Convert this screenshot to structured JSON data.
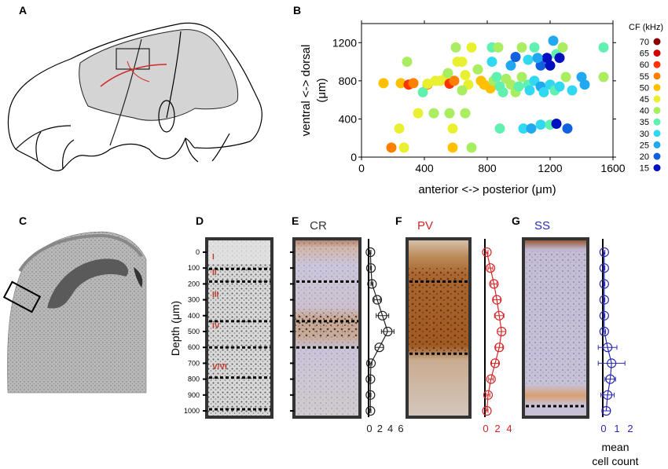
{
  "panels": {
    "A": "A",
    "B": "B",
    "C": "C",
    "D": "D",
    "E": "E",
    "F": "F",
    "G": "G"
  },
  "stain_titles": {
    "E": "CR",
    "F": "PV",
    "G": "SS"
  },
  "layer_labels": [
    "I",
    "II",
    "III",
    "IV",
    "V/VI"
  ],
  "colors": {
    "CR": "#222222",
    "PV": "#d62728",
    "SS": "#2a2ab5"
  },
  "chart_data": [
    {
      "type": "scatter",
      "panel": "B",
      "xlabel": "anterior <-> posterior (μm)",
      "ylabel_line1": "ventral <-> dorsal",
      "ylabel_line2": "(μm)",
      "xlim": [
        0,
        1600
      ],
      "ylim": [
        0,
        1400
      ],
      "xticks": [
        0,
        400,
        800,
        1200,
        1600
      ],
      "yticks": [
        0,
        400,
        800,
        1200
      ],
      "legend_title": "CF (kHz)",
      "legend": [
        {
          "label": "70",
          "color": "#8b0000"
        },
        {
          "label": "65",
          "color": "#d20000"
        },
        {
          "label": "60",
          "color": "#ff3300"
        },
        {
          "label": "55",
          "color": "#ff8000"
        },
        {
          "label": "50",
          "color": "#ffc000"
        },
        {
          "label": "45",
          "color": "#e8f030"
        },
        {
          "label": "40",
          "color": "#a8ee60"
        },
        {
          "label": "35",
          "color": "#60f0b0"
        },
        {
          "label": "30",
          "color": "#30d8f0"
        },
        {
          "label": "25",
          "color": "#20a8f0"
        },
        {
          "label": "20",
          "color": "#1060e0"
        },
        {
          "label": "15",
          "color": "#0010c0"
        }
      ],
      "points": [
        [
          140,
          775,
          50
        ],
        [
          250,
          775,
          50
        ],
        [
          300,
          760,
          60
        ],
        [
          330,
          775,
          55
        ],
        [
          420,
          760,
          55
        ],
        [
          470,
          800,
          45
        ],
        [
          500,
          800,
          45
        ],
        [
          540,
          840,
          45
        ],
        [
          560,
          770,
          60
        ],
        [
          590,
          800,
          55
        ],
        [
          610,
          1000,
          45
        ],
        [
          640,
          1000,
          45
        ],
        [
          660,
          860,
          45
        ],
        [
          680,
          760,
          45
        ],
        [
          700,
          1150,
          45
        ],
        [
          740,
          920,
          40
        ],
        [
          760,
          800,
          50
        ],
        [
          780,
          760,
          50
        ],
        [
          820,
          720,
          50
        ],
        [
          840,
          800,
          40
        ],
        [
          860,
          840,
          35
        ],
        [
          880,
          740,
          35
        ],
        [
          900,
          680,
          35
        ],
        [
          920,
          820,
          40
        ],
        [
          950,
          760,
          40
        ],
        [
          980,
          680,
          40
        ],
        [
          1000,
          740,
          35
        ],
        [
          1020,
          840,
          40
        ],
        [
          1060,
          760,
          35
        ],
        [
          1070,
          700,
          30
        ],
        [
          1100,
          800,
          30
        ],
        [
          1140,
          740,
          25
        ],
        [
          1160,
          680,
          30
        ],
        [
          1200,
          760,
          30
        ],
        [
          1230,
          700,
          35
        ],
        [
          1260,
          740,
          30
        ],
        [
          1300,
          840,
          40
        ],
        [
          1340,
          700,
          30
        ],
        [
          1400,
          840,
          25
        ],
        [
          1420,
          760,
          25
        ],
        [
          1540,
          840,
          40
        ],
        [
          1540,
          1150,
          35
        ],
        [
          830,
          1000,
          30
        ],
        [
          830,
          1150,
          35
        ],
        [
          870,
          1150,
          40
        ],
        [
          950,
          960,
          25
        ],
        [
          980,
          1050,
          20
        ],
        [
          1020,
          1150,
          40
        ],
        [
          1060,
          1020,
          30
        ],
        [
          1100,
          1150,
          35
        ],
        [
          1140,
          960,
          20
        ],
        [
          1180,
          1040,
          15
        ],
        [
          1200,
          960,
          15
        ],
        [
          1220,
          1220,
          25
        ],
        [
          1240,
          1080,
          35
        ],
        [
          1260,
          1040,
          15
        ],
        [
          1280,
          1150,
          40
        ],
        [
          1120,
          1040,
          25
        ],
        [
          600,
          1150,
          40
        ],
        [
          550,
          880,
          40
        ],
        [
          390,
          680,
          35
        ],
        [
          420,
          770,
          45
        ],
        [
          290,
          1000,
          40
        ],
        [
          640,
          700,
          40
        ],
        [
          360,
          460,
          45
        ],
        [
          460,
          460,
          40
        ],
        [
          560,
          460,
          40
        ],
        [
          660,
          460,
          40
        ],
        [
          240,
          300,
          45
        ],
        [
          580,
          300,
          45
        ],
        [
          880,
          300,
          35
        ],
        [
          1030,
          300,
          30
        ],
        [
          1080,
          300,
          25
        ],
        [
          1140,
          340,
          30
        ],
        [
          1200,
          340,
          35
        ],
        [
          1240,
          350,
          15
        ],
        [
          1310,
          300,
          20
        ],
        [
          190,
          100,
          55
        ],
        [
          270,
          100,
          45
        ],
        [
          580,
          100,
          50
        ],
        [
          700,
          100,
          40
        ]
      ]
    },
    {
      "type": "line",
      "panel": "E",
      "series_name": "CR",
      "xlim": [
        0,
        6
      ],
      "xticks": [
        0,
        2,
        4,
        6
      ],
      "xticklabels": [
        "0",
        "2",
        "4",
        "6"
      ],
      "depth": [
        0,
        100,
        200,
        300,
        400,
        500,
        600,
        700,
        800,
        900,
        1000
      ],
      "values": [
        0.2,
        0.3,
        0.5,
        1.5,
        2.5,
        3.5,
        1.9,
        0.3,
        0.2,
        0.2,
        0.2
      ],
      "errors": [
        0.1,
        0.1,
        0.2,
        0.6,
        1.2,
        1.2,
        0.8,
        0.2,
        0.1,
        0.1,
        0.1
      ]
    },
    {
      "type": "line",
      "panel": "F",
      "series_name": "PV",
      "xlim": [
        0,
        4
      ],
      "xticks": [
        0,
        2,
        4
      ],
      "xticklabels": [
        "0",
        "2",
        "4"
      ],
      "depth": [
        0,
        100,
        200,
        300,
        400,
        500,
        600,
        700,
        800,
        900,
        1000
      ],
      "values": [
        0.2,
        0.8,
        1.4,
        1.9,
        2.3,
        2.7,
        2.3,
        1.6,
        0.9,
        0.4,
        0.2
      ],
      "errors": [
        0.2,
        0.4,
        0.5,
        0.6,
        0.8,
        0.7,
        0.6,
        0.6,
        0.4,
        0.3,
        0.2
      ]
    },
    {
      "type": "line",
      "panel": "G",
      "series_name": "SS",
      "xlim": [
        0,
        2
      ],
      "xticks": [
        0,
        1,
        2
      ],
      "xticklabels": [
        "0",
        "1",
        "2"
      ],
      "xlabel_line1": "mean",
      "xlabel_line2": "cell count",
      "depth": [
        0,
        100,
        200,
        300,
        400,
        500,
        600,
        700,
        800,
        900,
        1000
      ],
      "values": [
        0.05,
        0.05,
        0.05,
        0.05,
        0.05,
        0.05,
        0.3,
        0.6,
        0.5,
        0.3,
        0.2
      ],
      "errors": [
        0.05,
        0.05,
        0.05,
        0.05,
        0.05,
        0.1,
        0.7,
        1.0,
        0.4,
        0.5,
        0.3
      ]
    }
  ],
  "depth_axis": {
    "label": "Depth (μm)",
    "ticks": [
      "0",
      "100",
      "200",
      "300",
      "400",
      "500",
      "600",
      "700",
      "800",
      "900",
      "1000"
    ]
  }
}
